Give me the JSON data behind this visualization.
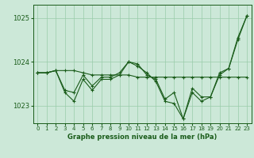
{
  "background_color": "#cce8d8",
  "plot_bg_color": "#cce8d8",
  "grid_color": "#99ccaa",
  "line_color": "#1a5c1a",
  "marker_color": "#1a5c1a",
  "xlabel": "Graphe pression niveau de la mer (hPa)",
  "ylim": [
    1022.6,
    1025.3
  ],
  "xlim": [
    -0.5,
    23.5
  ],
  "yticks": [
    1023,
    1024,
    1025
  ],
  "xticks": [
    0,
    1,
    2,
    3,
    4,
    5,
    6,
    7,
    8,
    9,
    10,
    11,
    12,
    13,
    14,
    15,
    16,
    17,
    18,
    19,
    20,
    21,
    22,
    23
  ],
  "series": [
    [
      1023.75,
      1023.75,
      1023.8,
      1023.3,
      1023.1,
      1023.6,
      1023.35,
      1023.6,
      1023.6,
      1023.7,
      1024.0,
      1023.9,
      1023.75,
      1023.55,
      1023.1,
      1023.05,
      1022.7,
      1023.3,
      1023.1,
      1023.2,
      1023.75,
      1023.85,
      1024.55,
      1025.05
    ],
    [
      1023.75,
      1023.75,
      1023.8,
      1023.35,
      1023.3,
      1023.7,
      1023.45,
      1023.65,
      1023.65,
      1023.75,
      1024.0,
      1023.95,
      1023.7,
      1023.6,
      1023.15,
      1023.3,
      1022.7,
      1023.4,
      1023.2,
      1023.2,
      1023.7,
      1023.85,
      1024.5,
      1025.05
    ],
    [
      1023.75,
      1023.75,
      1023.8,
      1023.8,
      1023.8,
      1023.75,
      1023.7,
      1023.7,
      1023.7,
      1023.7,
      1023.7,
      1023.65,
      1023.65,
      1023.65,
      1023.65,
      1023.65,
      1023.65,
      1023.65,
      1023.65,
      1023.65,
      1023.65,
      1023.65,
      1023.65,
      1023.65
    ]
  ]
}
